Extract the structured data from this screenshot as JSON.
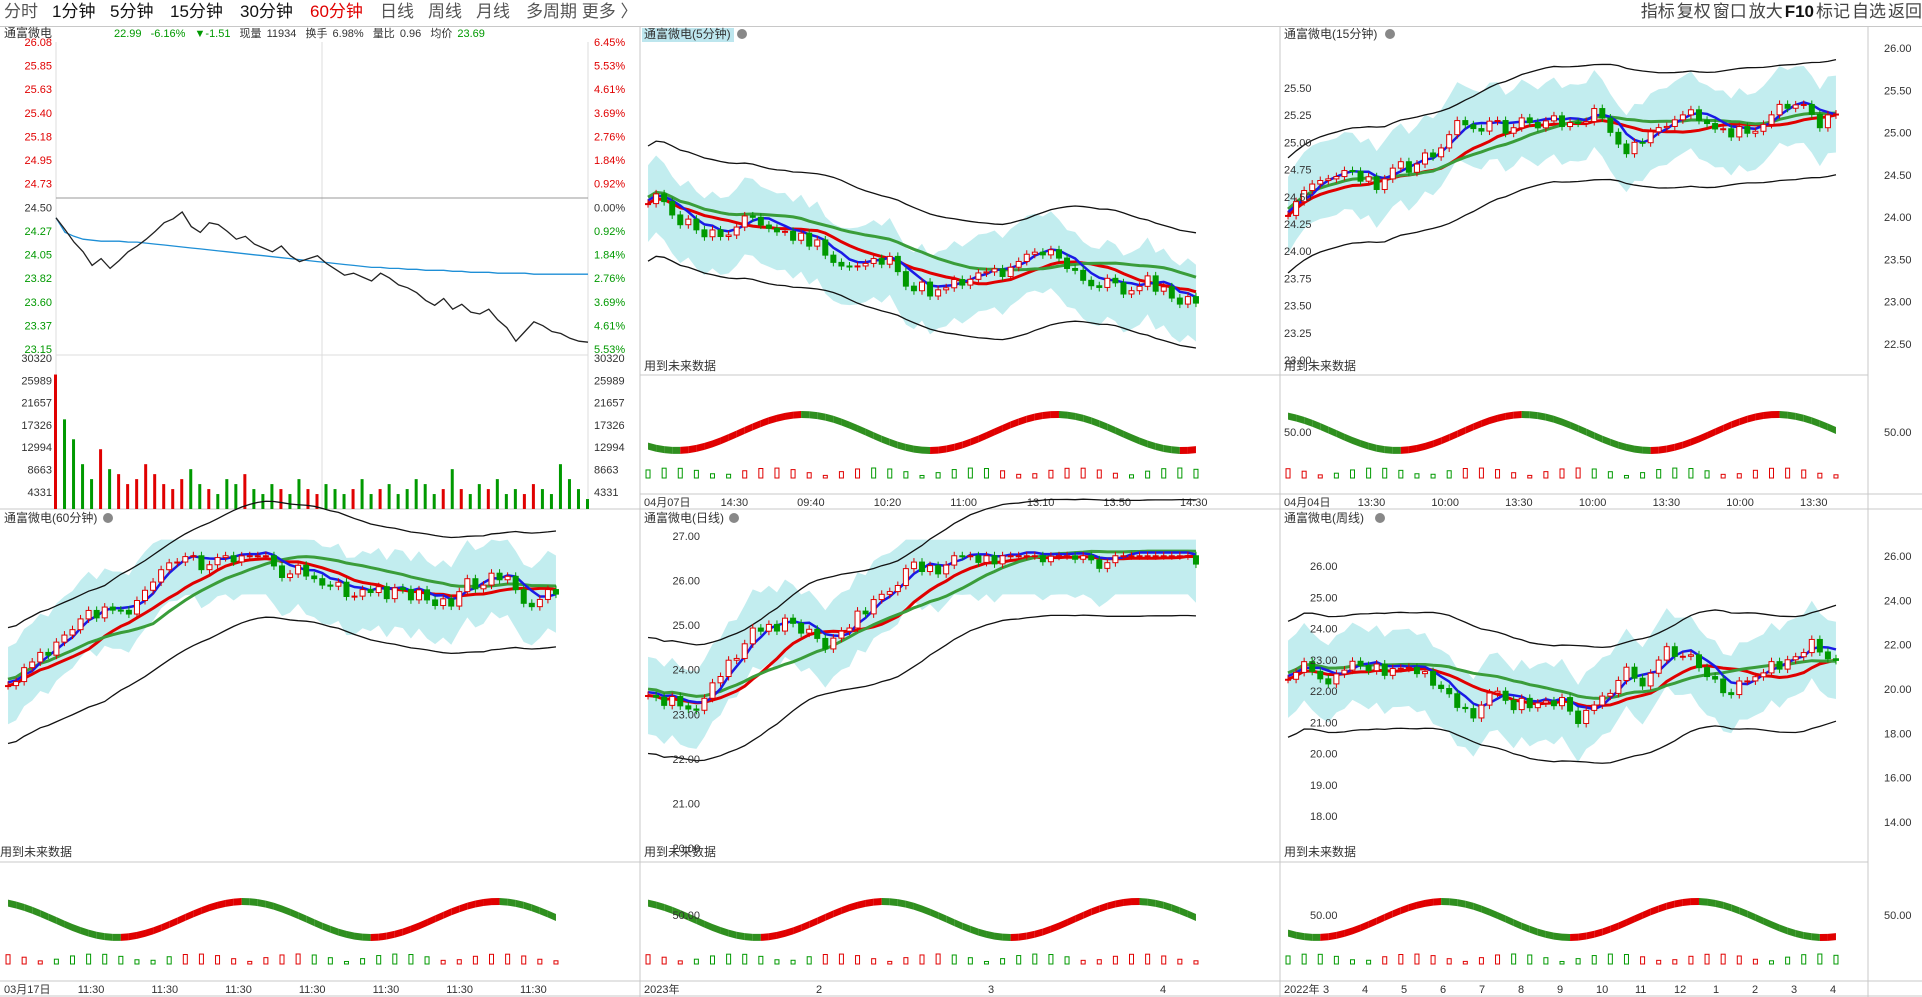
{
  "toolbar": {
    "periods": [
      {
        "label": "分时",
        "state": "normal"
      },
      {
        "label": "1分钟",
        "state": "active-blk"
      },
      {
        "label": "5分钟",
        "state": "active-blk"
      },
      {
        "label": "15分钟",
        "state": "active-blk"
      },
      {
        "label": "30分钟",
        "state": "active-blk"
      },
      {
        "label": "60分钟",
        "state": "active-red"
      },
      {
        "label": "日线",
        "state": "normal"
      },
      {
        "label": "周线",
        "state": "normal"
      },
      {
        "label": "月线",
        "state": "normal"
      },
      {
        "label": "多周期 更多 〉",
        "state": "normal"
      }
    ],
    "right": [
      "指标",
      "复权",
      "窗口",
      "放大",
      "F10",
      "标记",
      "自选",
      "返回"
    ]
  },
  "colors": {
    "up": "#e00000",
    "down": "#009900",
    "ma_blue": "#1a1ae6",
    "price": "#222222",
    "avg": "#1e8fd6"
  },
  "panels": {
    "intraday": {
      "title": "通富微电",
      "quote": {
        "price": "22.99",
        "pct": "-6.16%",
        "chg": "▼-1.51",
        "vol_label": "现量",
        "vol": "11934",
        "turn_label": "换手",
        "turn": "6.98%",
        "ratio_label": "量比",
        "ratio": "0.96",
        "avg_label": "均价",
        "avg": "23.69"
      },
      "price_ticks_left": [
        "26.08",
        "25.85",
        "25.63",
        "25.40",
        "25.18",
        "24.95",
        "24.73",
        "24.50",
        "24.27",
        "24.05",
        "23.82",
        "23.60",
        "23.37",
        "23.15"
      ],
      "price_ticks_right": [
        "6.45%",
        "5.53%",
        "4.61%",
        "3.69%",
        "2.76%",
        "1.84%",
        "0.92%",
        "0.00%",
        "0.92%",
        "1.84%",
        "2.76%",
        "3.69%",
        "4.61%",
        "5.53%"
      ],
      "vol_ticks": [
        "30320",
        "25989",
        "21657",
        "17326",
        "12994",
        "8663",
        "4331"
      ]
    },
    "m5": {
      "title": "通富微电(5分钟)",
      "note": "用到未来数据",
      "xlabels": [
        "04月07日",
        "14:30",
        "09:40",
        "10:20",
        "11:00",
        "13:10",
        "13:50",
        "14:30"
      ]
    },
    "m15": {
      "title": "通富微电(15分钟)",
      "note": "用到未来数据",
      "price_ticks": [
        "25.50",
        "25.25",
        "25.00",
        "24.75",
        "24.50",
        "24.25",
        "24.00",
        "23.75",
        "23.50",
        "23.25",
        "23.00"
      ],
      "right_ticks": [
        "26.00",
        "25.50",
        "25.00",
        "24.50",
        "24.00",
        "23.50",
        "23.00",
        "22.50"
      ],
      "osc_tick": "50.00",
      "right_osc_tick": "50.00",
      "xlabels": [
        "04月04日",
        "13:30",
        "10:00",
        "13:30",
        "10:00",
        "13:30",
        "10:00",
        "13:30"
      ]
    },
    "m60": {
      "title": "通富微电(60分钟)",
      "note": "用到未来数据",
      "xlabels": [
        "03月17日",
        "11:30",
        "11:30",
        "11:30",
        "11:30",
        "11:30",
        "11:30",
        "11:30"
      ]
    },
    "day": {
      "title": "通富微电(日线)",
      "note": "用到未来数据",
      "price_ticks": [
        "27.00",
        "26.00",
        "25.00",
        "24.00",
        "23.00",
        "22.00",
        "21.00",
        "20.00"
      ],
      "osc_tick": "50.00",
      "xlabels": [
        "2023年",
        "2",
        "3",
        "4"
      ]
    },
    "week": {
      "title": "通富微电(周线)",
      "note": "用到未来数据",
      "price_ticks": [
        "26.00",
        "25.00",
        "24.00",
        "23.00",
        "22.00",
        "21.00",
        "20.00",
        "19.00",
        "18.00"
      ],
      "right_ticks": [
        "26.00",
        "24.00",
        "22.00",
        "20.00",
        "18.00",
        "16.00",
        "14.00"
      ],
      "osc_tick": "50.00",
      "right_osc_tick": "50.00",
      "xlabels": [
        "2022年",
        "3",
        "4",
        "5",
        "6",
        "7",
        "8",
        "9",
        "10",
        "11",
        "12",
        "1",
        "2",
        "3",
        "4"
      ]
    }
  },
  "chart_data": [
    {
      "type": "line",
      "title": "通富微电",
      "series": [
        {
          "values": [
            24.27,
            24.15,
            24.02,
            23.92,
            23.78,
            23.85,
            23.75,
            23.83,
            23.92,
            23.98,
            24.05,
            24.13,
            24.22,
            24.26,
            24.33,
            24.18,
            24.12,
            24.22,
            24.2,
            24.13,
            24.05,
            24.08,
            24.0,
            23.96,
            23.92,
            23.98,
            23.88,
            23.82,
            23.85,
            23.88,
            23.8,
            23.74,
            23.68,
            23.7,
            23.66,
            23.62,
            23.7,
            23.65,
            23.58,
            23.55,
            23.5,
            23.42,
            23.37,
            23.44,
            23.33,
            23.38,
            23.3,
            23.28,
            23.33,
            23.22,
            23.14,
            23.0,
            23.1,
            23.2,
            23.16,
            23.1,
            23.08,
            23.03,
            23.0,
            22.99
          ]
        },
        {
          "values": [
            24.27,
            24.12,
            24.08,
            24.05,
            24.04,
            24.03,
            24.03,
            24.03,
            24.02,
            24.02,
            24.01,
            24.0,
            23.99,
            23.98,
            23.97,
            23.96,
            23.95,
            23.94,
            23.93,
            23.92,
            23.91,
            23.9,
            23.89,
            23.88,
            23.87,
            23.86,
            23.85,
            23.84,
            23.83,
            23.82,
            23.81,
            23.8,
            23.79,
            23.78,
            23.77,
            23.76,
            23.76,
            23.75,
            23.75,
            23.74,
            23.74,
            23.73,
            23.73,
            23.73,
            23.72,
            23.72,
            23.71,
            23.71,
            23.71,
            23.7,
            23.7,
            23.7,
            23.7,
            23.69,
            23.69,
            23.69,
            23.69,
            23.69,
            23.69,
            23.69
          ]
        }
      ],
      "volume": [
        27000,
        18000,
        14000,
        9000,
        6000,
        12000,
        8000,
        7000,
        5000,
        6000,
        9000,
        7000,
        5000,
        4000,
        6000,
        8000,
        5000,
        4000,
        3000,
        6000,
        5000,
        7000,
        4000,
        3000,
        5000,
        4000,
        3000,
        6000,
        4000,
        3000,
        5000,
        4000,
        3000,
        4000,
        6000,
        3000,
        4000,
        5000,
        3000,
        4000,
        6000,
        5000,
        3000,
        4000,
        8000,
        4000,
        3000,
        5000,
        4000,
        6000,
        3000,
        4000,
        3000,
        5000,
        4000,
        3000,
        9000,
        6000,
        4000,
        2000
      ]
    }
  ]
}
